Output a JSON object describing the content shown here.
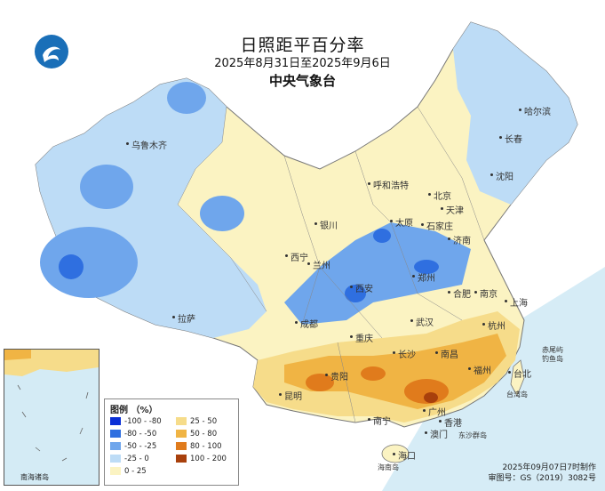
{
  "title": "日照距平百分率",
  "period": "2025年8月31日至2025年9月6日",
  "agency": "中央气象台",
  "legend": {
    "title": "图例 （%）",
    "items": [
      {
        "label": "-100 - -80",
        "color": "#0a2fd6"
      },
      {
        "label": "-80 - -50",
        "color": "#2f6fe0"
      },
      {
        "label": "-50 - -25",
        "color": "#6fa6ec"
      },
      {
        "label": "-25 - 0",
        "color": "#bddcf6"
      },
      {
        "label": "0 - 25",
        "color": "#fbf3c2"
      },
      {
        "label": "25 - 50",
        "color": "#f6dc8a"
      },
      {
        "label": "50 - 80",
        "color": "#f0b444"
      },
      {
        "label": "80 - 100",
        "color": "#e07b1c"
      },
      {
        "label": "100 - 200",
        "color": "#a8400c"
      }
    ]
  },
  "cities": [
    {
      "name": "哈尔滨"
    },
    {
      "name": "长春"
    },
    {
      "name": "沈阳"
    },
    {
      "name": "乌鲁木齐"
    },
    {
      "name": "呼和浩特"
    },
    {
      "name": "北京"
    },
    {
      "name": "天津"
    },
    {
      "name": "银川"
    },
    {
      "name": "太原"
    },
    {
      "name": "石家庄"
    },
    {
      "name": "济南"
    },
    {
      "name": "西宁"
    },
    {
      "name": "兰州"
    },
    {
      "name": "郑州"
    },
    {
      "name": "西安"
    },
    {
      "name": "合肥"
    },
    {
      "name": "南京"
    },
    {
      "name": "上海"
    },
    {
      "name": "拉萨"
    },
    {
      "name": "成都"
    },
    {
      "name": "武汉"
    },
    {
      "name": "杭州"
    },
    {
      "name": "重庆"
    },
    {
      "name": "长沙"
    },
    {
      "name": "南昌"
    },
    {
      "name": "福州"
    },
    {
      "name": "台北"
    },
    {
      "name": "贵阳"
    },
    {
      "name": "昆明"
    },
    {
      "name": "南宁"
    },
    {
      "name": "广州"
    },
    {
      "name": "香港"
    },
    {
      "name": "澳门"
    },
    {
      "name": "海口"
    }
  ],
  "islands": [
    "赤尾屿",
    "钓鱼岛",
    "台湾岛",
    "东沙群岛",
    "海南岛"
  ],
  "inset_label": "南海诸岛",
  "footer": {
    "made": "2025年09月07日7时制作",
    "review": "审图号：GS（2019）3082号"
  }
}
